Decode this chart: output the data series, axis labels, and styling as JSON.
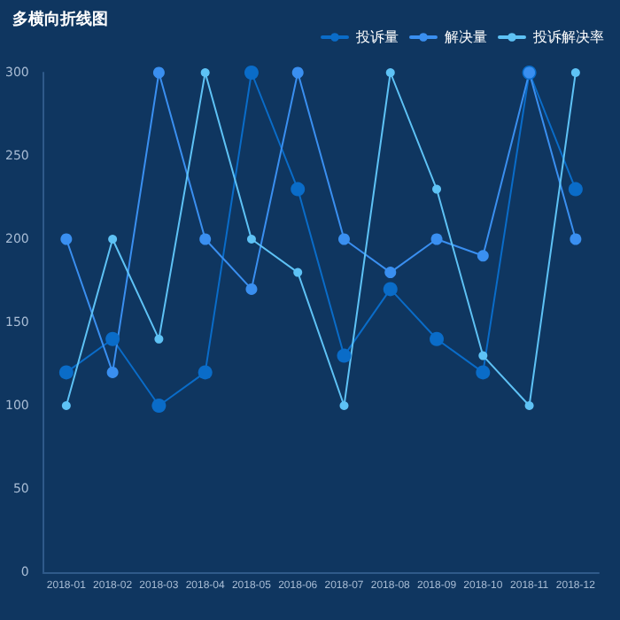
{
  "chart_data": {
    "type": "line",
    "title": "多横向折线图",
    "categories": [
      "2018-01",
      "2018-02",
      "2018-03",
      "2018-04",
      "2018-05",
      "2018-06",
      "2018-07",
      "2018-08",
      "2018-09",
      "2018-10",
      "2018-11",
      "2018-12"
    ],
    "series": [
      {
        "name": "投诉量",
        "color": "#0a6cc8",
        "values": [
          120,
          140,
          100,
          120,
          300,
          230,
          130,
          170,
          140,
          120,
          300,
          230
        ]
      },
      {
        "name": "解决量",
        "color": "#3a8ff0",
        "values": [
          200,
          120,
          300,
          200,
          170,
          300,
          200,
          180,
          200,
          190,
          300,
          200
        ]
      },
      {
        "name": "投诉解决率",
        "color": "#5ec2f5",
        "values": [
          100,
          200,
          140,
          300,
          200,
          180,
          100,
          300,
          230,
          130,
          100,
          300
        ]
      }
    ],
    "ylim": [
      0,
      300
    ],
    "yticks": [
      0,
      50,
      100,
      150,
      200,
      250,
      300
    ],
    "grid": false,
    "legend": "top right",
    "marker": "circle",
    "line_style": "solid"
  }
}
